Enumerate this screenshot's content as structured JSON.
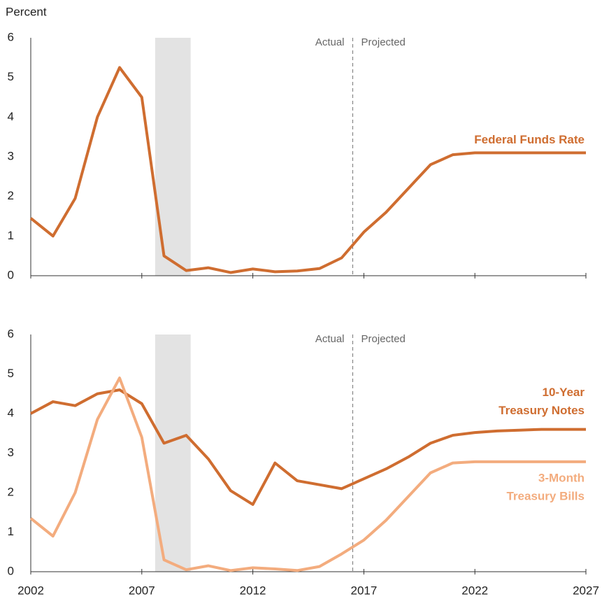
{
  "chart_data": [
    {
      "type": "line",
      "ylabel": "Percent",
      "x": [
        2002,
        2003,
        2004,
        2005,
        2006,
        2007,
        2008,
        2009,
        2010,
        2011,
        2012,
        2013,
        2014,
        2015,
        2016,
        2017,
        2018,
        2019,
        2020,
        2021,
        2022,
        2023,
        2024,
        2025,
        2026,
        2027
      ],
      "series": [
        {
          "name": [
            "Federal Funds Rate"
          ],
          "color": "#cf6d30",
          "values": [
            1.45,
            1.0,
            1.95,
            4.0,
            5.25,
            4.5,
            0.5,
            0.13,
            0.2,
            0.08,
            0.17,
            0.1,
            0.12,
            0.18,
            0.45,
            1.1,
            1.6,
            2.2,
            2.8,
            3.05,
            3.1,
            3.1,
            3.1,
            3.1,
            3.1,
            3.1
          ]
        }
      ],
      "xlim": [
        2002,
        2027
      ],
      "xticks": [
        2002,
        2007,
        2012,
        2017,
        2022,
        2027
      ],
      "show_xtick_labels": false,
      "ylim": [
        0,
        6
      ],
      "yticks": [
        0,
        1,
        2,
        3,
        4,
        5,
        6
      ],
      "recession": [
        2007.6,
        2009.2
      ],
      "divider": {
        "x": 2016.5,
        "left_label": "Actual",
        "right_label": "Projected"
      }
    },
    {
      "type": "line",
      "x": [
        2002,
        2003,
        2004,
        2005,
        2006,
        2007,
        2008,
        2009,
        2010,
        2011,
        2012,
        2013,
        2014,
        2015,
        2016,
        2017,
        2018,
        2019,
        2020,
        2021,
        2022,
        2023,
        2024,
        2025,
        2026,
        2027
      ],
      "series": [
        {
          "name": [
            "10-Year",
            "Treasury Notes"
          ],
          "color": "#cf6d30",
          "values": [
            4.0,
            4.3,
            4.2,
            4.5,
            4.6,
            4.25,
            3.25,
            3.45,
            2.85,
            2.05,
            1.7,
            2.75,
            2.3,
            2.2,
            2.1,
            2.35,
            2.6,
            2.9,
            3.25,
            3.45,
            3.52,
            3.56,
            3.58,
            3.6,
            3.6,
            3.6
          ]
        },
        {
          "name": [
            "3-Month",
            "Treasury Bills"
          ],
          "color": "#f3ac7e",
          "values": [
            1.35,
            0.9,
            2.0,
            3.85,
            4.9,
            3.4,
            0.3,
            0.05,
            0.15,
            0.03,
            0.1,
            0.07,
            0.03,
            0.13,
            0.45,
            0.8,
            1.3,
            1.9,
            2.5,
            2.75,
            2.78,
            2.78,
            2.78,
            2.78,
            2.78,
            2.78
          ]
        }
      ],
      "xlim": [
        2002,
        2027
      ],
      "xticks": [
        2002,
        2007,
        2012,
        2017,
        2022,
        2027
      ],
      "show_xtick_labels": true,
      "ylim": [
        0,
        6
      ],
      "yticks": [
        0,
        1,
        2,
        3,
        4,
        5,
        6
      ],
      "recession": [
        2007.6,
        2009.2
      ],
      "divider": {
        "x": 2016.5,
        "left_label": "Actual",
        "right_label": "Projected"
      }
    }
  ]
}
